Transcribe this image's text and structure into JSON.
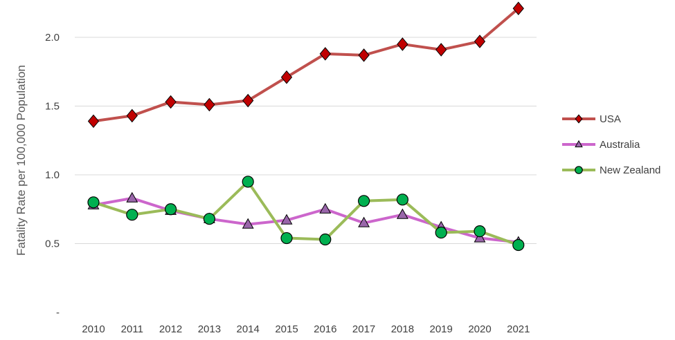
{
  "chart_data": {
    "type": "line",
    "title": "",
    "xlabel": "",
    "ylabel": "Fatality Rate per 100,000 Population",
    "x": [
      "2010",
      "2011",
      "2012",
      "2013",
      "2014",
      "2015",
      "2016",
      "2017",
      "2018",
      "2019",
      "2020",
      "2021"
    ],
    "ylim": [
      0,
      2.0
    ],
    "yticks": [
      {
        "value": 0,
        "label": "-"
      },
      {
        "value": 0.5,
        "label": "0.5"
      },
      {
        "value": 1.0,
        "label": "1.0"
      },
      {
        "value": 1.5,
        "label": "1.5"
      },
      {
        "value": 2.0,
        "label": "2.0"
      }
    ],
    "grid": true,
    "legend_position": "right",
    "series": [
      {
        "name": "USA",
        "color": "#c0504d",
        "marker_color": "#c00000",
        "marker": "diamond",
        "values": [
          1.39,
          1.43,
          1.53,
          1.51,
          1.54,
          1.71,
          1.88,
          1.87,
          1.95,
          1.91,
          1.97,
          2.21
        ]
      },
      {
        "name": "Australia",
        "color": "#cc66cc",
        "marker_color": "#9966aa",
        "marker": "triangle",
        "values": [
          0.78,
          0.83,
          0.74,
          0.68,
          0.64,
          0.67,
          0.75,
          0.65,
          0.71,
          0.62,
          0.54,
          0.51
        ]
      },
      {
        "name": "New Zealand",
        "color": "#9bbb59",
        "marker_color": "#00b050",
        "marker": "circle",
        "values": [
          0.8,
          0.71,
          0.75,
          0.68,
          0.95,
          0.54,
          0.53,
          0.81,
          0.82,
          0.58,
          0.59,
          0.49
        ]
      }
    ]
  }
}
